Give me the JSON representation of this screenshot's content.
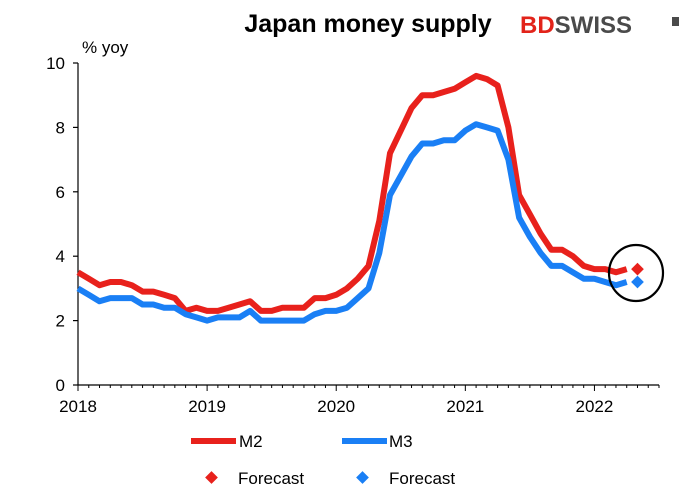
{
  "logo": {
    "part1": "BD",
    "part2": "SWISS",
    "colors": {
      "red": "#e2231a",
      "grey": "#4a4a4a"
    }
  },
  "chart_data": {
    "type": "line",
    "title": "Japan money supply",
    "ylabel": "% yoy",
    "xlabel": "",
    "ylim": [
      0,
      10
    ],
    "yticks": [
      0,
      2,
      4,
      6,
      8,
      10
    ],
    "xlim": [
      "2018-01",
      "2022-07"
    ],
    "xticks": [
      "2018",
      "2019",
      "2020",
      "2021",
      "2022"
    ],
    "grid": false,
    "legend": "bottom",
    "annotation": "circle around forecast points",
    "x": [
      "2018-01",
      "2018-02",
      "2018-03",
      "2018-04",
      "2018-05",
      "2018-06",
      "2018-07",
      "2018-08",
      "2018-09",
      "2018-10",
      "2018-11",
      "2018-12",
      "2019-01",
      "2019-02",
      "2019-03",
      "2019-04",
      "2019-05",
      "2019-06",
      "2019-07",
      "2019-08",
      "2019-09",
      "2019-10",
      "2019-11",
      "2019-12",
      "2020-01",
      "2020-02",
      "2020-03",
      "2020-04",
      "2020-05",
      "2020-06",
      "2020-07",
      "2020-08",
      "2020-09",
      "2020-10",
      "2020-11",
      "2020-12",
      "2021-01",
      "2021-02",
      "2021-03",
      "2021-04",
      "2021-05",
      "2021-06",
      "2021-07",
      "2021-08",
      "2021-09",
      "2021-10",
      "2021-11",
      "2021-12",
      "2022-01",
      "2022-02",
      "2022-03",
      "2022-04"
    ],
    "series": [
      {
        "name": "M2",
        "color": "#e8211c",
        "values": [
          3.5,
          3.3,
          3.1,
          3.2,
          3.2,
          3.1,
          2.9,
          2.9,
          2.8,
          2.7,
          2.3,
          2.4,
          2.3,
          2.3,
          2.4,
          2.5,
          2.6,
          2.3,
          2.3,
          2.4,
          2.4,
          2.4,
          2.7,
          2.7,
          2.8,
          3.0,
          3.3,
          3.7,
          5.1,
          7.2,
          7.9,
          8.6,
          9.0,
          9.0,
          9.1,
          9.2,
          9.4,
          9.6,
          9.5,
          9.3,
          8.0,
          5.9,
          5.3,
          4.7,
          4.2,
          4.2,
          4.0,
          3.7,
          3.6,
          3.6,
          3.5,
          3.6
        ]
      },
      {
        "name": "M3",
        "color": "#1a7ff5",
        "values": [
          3.0,
          2.8,
          2.6,
          2.7,
          2.7,
          2.7,
          2.5,
          2.5,
          2.4,
          2.4,
          2.2,
          2.1,
          2.0,
          2.1,
          2.1,
          2.1,
          2.3,
          2.0,
          2.0,
          2.0,
          2.0,
          2.0,
          2.2,
          2.3,
          2.3,
          2.4,
          2.7,
          3.0,
          4.1,
          5.9,
          6.5,
          7.1,
          7.5,
          7.5,
          7.6,
          7.6,
          7.9,
          8.1,
          8.0,
          7.9,
          7.0,
          5.2,
          4.6,
          4.1,
          3.7,
          3.7,
          3.5,
          3.3,
          3.3,
          3.2,
          3.1,
          3.2
        ]
      }
    ],
    "forecast": [
      {
        "name": "Forecast",
        "x": "2022-05",
        "value": 3.6,
        "color": "#e8211c"
      },
      {
        "name": "Forecast",
        "x": "2022-05",
        "value": 3.2,
        "color": "#1a7ff5"
      }
    ]
  }
}
